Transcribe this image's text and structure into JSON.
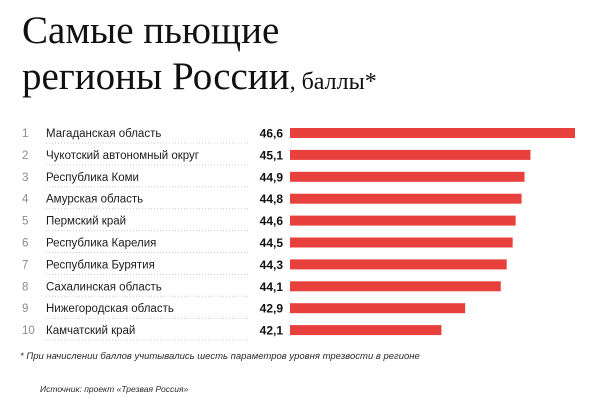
{
  "title": {
    "line1": "Самые пьющие",
    "line2": "регионы России",
    "suffix": ", баллы*"
  },
  "chart_data": {
    "type": "bar",
    "orientation": "horizontal",
    "categories": [
      "Магаданская область",
      "Чукотский автономный округ",
      "Республика Коми",
      "Амурская область",
      "Пермский край",
      "Республика Карелия",
      "Республика Бурятия",
      "Сахалинская область",
      "Нижегородская область",
      "Камчатский край"
    ],
    "ranks": [
      "1",
      "2",
      "3",
      "4",
      "5",
      "6",
      "7",
      "8",
      "9",
      "10"
    ],
    "value_labels": [
      "46,6",
      "45,1",
      "44,9",
      "44,8",
      "44,6",
      "44,5",
      "44,3",
      "44,1",
      "42,9",
      "42,1"
    ],
    "values": [
      46.6,
      45.1,
      44.9,
      44.8,
      44.6,
      44.5,
      44.3,
      44.1,
      42.9,
      42.1
    ],
    "bar_color": "#e8403c",
    "grid": false,
    "legend": "none"
  },
  "footnote": "* При начислении баллов учитывались шесть параметров уровня трезвости в регионе",
  "source": "Источник: проект «Трезвая Россия»"
}
